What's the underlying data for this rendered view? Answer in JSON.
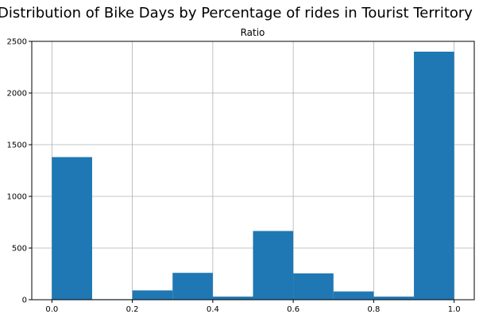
{
  "chart_data": {
    "type": "bar",
    "title": "Distribution of Bike Days by Percentage of rides in Tourist Territory",
    "subtitle": "Ratio",
    "xlim": [
      -0.05,
      1.05
    ],
    "ylim": [
      0,
      2500
    ],
    "x_ticks": [
      0.0,
      0.2,
      0.4,
      0.6,
      0.8,
      1.0
    ],
    "x_tick_labels": [
      "0.0",
      "0.2",
      "0.4",
      "0.6",
      "0.8",
      "1.0"
    ],
    "y_ticks": [
      0,
      500,
      1000,
      1500,
      2000,
      2500
    ],
    "y_tick_labels": [
      "0",
      "500",
      "1000",
      "1500",
      "2000",
      "2500"
    ],
    "bins": [
      {
        "x0": 0.0,
        "x1": 0.1,
        "count": 1380
      },
      {
        "x0": 0.1,
        "x1": 0.2,
        "count": 5
      },
      {
        "x0": 0.2,
        "x1": 0.3,
        "count": 90
      },
      {
        "x0": 0.3,
        "x1": 0.4,
        "count": 260
      },
      {
        "x0": 0.4,
        "x1": 0.5,
        "count": 30
      },
      {
        "x0": 0.5,
        "x1": 0.6,
        "count": 665
      },
      {
        "x0": 0.6,
        "x1": 0.7,
        "count": 255
      },
      {
        "x0": 0.7,
        "x1": 0.8,
        "count": 80
      },
      {
        "x0": 0.8,
        "x1": 0.9,
        "count": 30
      },
      {
        "x0": 0.9,
        "x1": 1.0,
        "count": 2400
      }
    ],
    "grid": true,
    "colors": {
      "bar": "#1f77b4",
      "grid": "#b0b0b0",
      "axis": "#000000"
    }
  }
}
